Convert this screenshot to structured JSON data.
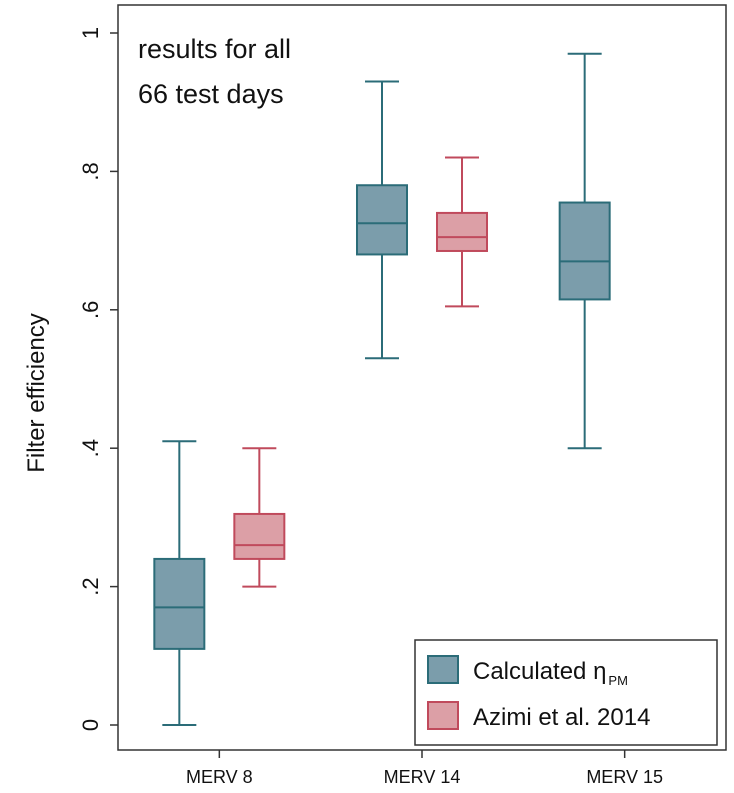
{
  "chart_data": {
    "type": "box",
    "ylabel": "Filter efficiency",
    "ylim": [
      0,
      1
    ],
    "yticks": [
      {
        "value": 0,
        "label": "0"
      },
      {
        "value": 0.2,
        "label": ".2"
      },
      {
        "value": 0.4,
        "label": ".4"
      },
      {
        "value": 0.6,
        "label": ".6"
      },
      {
        "value": 0.8,
        "label": ".8"
      },
      {
        "value": 1,
        "label": "1"
      }
    ],
    "categories": [
      "MERV 8",
      "MERV 14",
      "MERV 15"
    ],
    "annotation_lines": [
      "results for all",
      "66 test days"
    ],
    "legend": {
      "placement": "bottom-right",
      "entries": [
        {
          "series": 0,
          "text": "Calculated η",
          "sub": "PM"
        },
        {
          "series": 1,
          "text": "Azimi et al. 2014",
          "sub": ""
        }
      ]
    },
    "series": [
      {
        "name": "Calculated η PM",
        "fill": "#7b9dab",
        "stroke": "#2b6c78",
        "boxes": [
          {
            "category": "MERV 8",
            "min": 0.0,
            "q1": 0.11,
            "median": 0.17,
            "q3": 0.24,
            "max": 0.41
          },
          {
            "category": "MERV 14",
            "min": 0.53,
            "q1": 0.68,
            "median": 0.725,
            "q3": 0.78,
            "max": 0.93
          },
          {
            "category": "MERV 15",
            "min": 0.4,
            "q1": 0.615,
            "median": 0.67,
            "q3": 0.755,
            "max": 0.97
          }
        ]
      },
      {
        "name": "Azimi et al. 2014",
        "fill": "#dc9fa6",
        "stroke": "#c04a5c",
        "boxes": [
          {
            "category": "MERV 8",
            "min": 0.2,
            "q1": 0.24,
            "median": 0.26,
            "q3": 0.305,
            "max": 0.4
          },
          {
            "category": "MERV 14",
            "min": 0.605,
            "q1": 0.685,
            "median": 0.705,
            "q3": 0.74,
            "max": 0.82
          }
        ]
      }
    ]
  }
}
